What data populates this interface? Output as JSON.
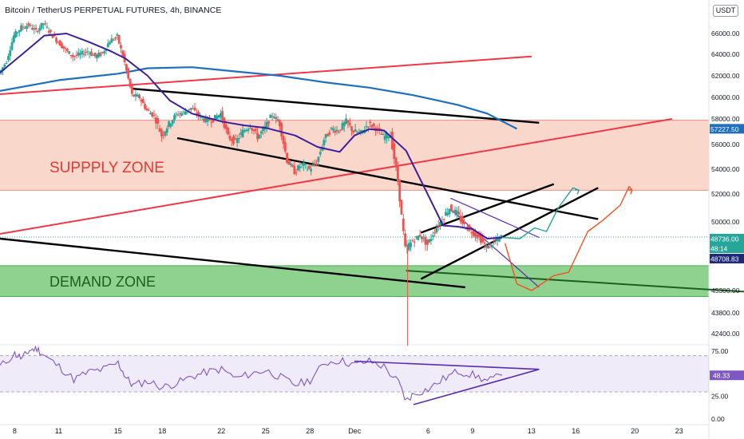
{
  "header": {
    "title": "Bitcoin / TetherUS PERPETUAL FUTURES, 4h, BINANCE",
    "currency": "USDT"
  },
  "zones": {
    "supply": {
      "label": "SUPPPLY ZONE",
      "from": 52300,
      "to": 57900,
      "color": "#f7c9b8"
    },
    "demand": {
      "label": "DEMAND ZONE",
      "from": 44900,
      "to": 46800,
      "color": "#8fd18f"
    }
  },
  "price_badges": [
    {
      "value": "57227.50",
      "bg": "#1e6fbf"
    },
    {
      "value": "48736.00",
      "bg": "#26a69a"
    },
    {
      "value": "48:14",
      "bg": "#26a69a"
    },
    {
      "value": "48708.83",
      "bg": "#1e2a78"
    }
  ],
  "rsi_badge": {
    "value": "48.33",
    "bg": "#7e57c2"
  },
  "chart_data": [
    {
      "type": "candlestick",
      "title": "Bitcoin / TetherUS PERPETUAL FUTURES, 4h, BINANCE",
      "y_ticks": [
        "66000.00",
        "64000.00",
        "62000.00",
        "60000.00",
        "58000.00",
        "56000.00",
        "54000.00",
        "52000.00",
        "50000.00",
        "48000.00",
        "45300.00",
        "43800.00",
        "42400.00"
      ],
      "y_tick_values": [
        66000,
        64000,
        62000,
        60000,
        58000,
        56000,
        54000,
        52000,
        50000,
        48000,
        45300,
        43800,
        42400
      ],
      "x_ticks": [
        "8",
        "11",
        "15",
        "18",
        "22",
        "25",
        "28",
        "Dec",
        "6",
        "9",
        "13",
        "16",
        "20",
        "23"
      ],
      "x_tick_days": [
        8,
        11,
        15,
        18,
        22,
        25,
        28,
        31,
        36,
        39,
        43,
        46,
        50,
        53
      ],
      "x_axis": "day index (Nov 1 = 1, Dec = 31)",
      "ylim": [
        41500,
        68000
      ],
      "price_path": [
        [
          7.0,
          62200
        ],
        [
          7.5,
          63400
        ],
        [
          8.0,
          65800
        ],
        [
          8.5,
          66600
        ],
        [
          9.0,
          66800
        ],
        [
          9.5,
          66200
        ],
        [
          10.0,
          67000
        ],
        [
          10.5,
          66000
        ],
        [
          11.0,
          65200
        ],
        [
          11.5,
          64400
        ],
        [
          12.0,
          63800
        ],
        [
          12.5,
          64000
        ],
        [
          13.0,
          64300
        ],
        [
          13.5,
          63800
        ],
        [
          14.0,
          64100
        ],
        [
          14.5,
          65300
        ],
        [
          15.0,
          65700
        ],
        [
          15.5,
          63200
        ],
        [
          16.0,
          60200
        ],
        [
          16.5,
          60000
        ],
        [
          17.0,
          58800
        ],
        [
          17.5,
          58300
        ],
        [
          18.0,
          56700
        ],
        [
          18.5,
          57600
        ],
        [
          19.0,
          58400
        ],
        [
          19.5,
          58600
        ],
        [
          20.0,
          59000
        ],
        [
          20.5,
          58300
        ],
        [
          21.0,
          57900
        ],
        [
          21.5,
          58000
        ],
        [
          22.0,
          58500
        ],
        [
          22.5,
          56600
        ],
        [
          23.0,
          56200
        ],
        [
          23.5,
          57000
        ],
        [
          24.0,
          57500
        ],
        [
          24.5,
          56600
        ],
        [
          25.0,
          57300
        ],
        [
          25.5,
          58400
        ],
        [
          26.0,
          57600
        ],
        [
          26.5,
          54700
        ],
        [
          27.0,
          53800
        ],
        [
          27.5,
          54400
        ],
        [
          28.0,
          54000
        ],
        [
          28.5,
          54500
        ],
        [
          29.0,
          56400
        ],
        [
          29.5,
          57200
        ],
        [
          30.0,
          57100
        ],
        [
          30.5,
          57800
        ],
        [
          31.0,
          57000
        ],
        [
          31.5,
          56900
        ],
        [
          32.0,
          57600
        ],
        [
          32.5,
          57300
        ],
        [
          33.0,
          56600
        ],
        [
          33.5,
          56800
        ],
        [
          34.0,
          53000
        ],
        [
          34.5,
          47800
        ],
        [
          35.0,
          48400
        ],
        [
          35.5,
          48900
        ],
        [
          36.0,
          48100
        ],
        [
          36.5,
          49300
        ],
        [
          37.0,
          50200
        ],
        [
          37.5,
          51000
        ],
        [
          38.0,
          50600
        ],
        [
          38.5,
          49700
        ],
        [
          39.0,
          49200
        ],
        [
          39.5,
          48700
        ],
        [
          40.0,
          47900
        ],
        [
          40.5,
          48300
        ],
        [
          41.0,
          48736
        ]
      ],
      "ema_blue": [
        [
          7.0,
          60600
        ],
        [
          11.0,
          61600
        ],
        [
          15.0,
          62200
        ],
        [
          17.0,
          62700
        ],
        [
          20.0,
          62800
        ],
        [
          23.0,
          62400
        ],
        [
          26.0,
          62000
        ],
        [
          29.0,
          61400
        ],
        [
          32.0,
          60900
        ],
        [
          35.0,
          60200
        ],
        [
          38.0,
          59300
        ],
        [
          40.0,
          58500
        ],
        [
          42.0,
          57227
        ]
      ],
      "ma_purple": [
        [
          7.0,
          62300
        ],
        [
          8.5,
          64000
        ],
        [
          10.0,
          65800
        ],
        [
          11.5,
          66000
        ],
        [
          13.0,
          65200
        ],
        [
          14.5,
          64300
        ],
        [
          15.5,
          63600
        ],
        [
          17.0,
          62000
        ],
        [
          18.5,
          59700
        ],
        [
          20.0,
          58500
        ],
        [
          22.0,
          57800
        ],
        [
          23.5,
          57500
        ],
        [
          25.0,
          57300
        ],
        [
          27.0,
          56700
        ],
        [
          28.5,
          55800
        ],
        [
          30.0,
          55400
        ],
        [
          31.0,
          56700
        ],
        [
          32.0,
          57200
        ],
        [
          33.0,
          57100
        ],
        [
          34.5,
          55500
        ],
        [
          36.0,
          51900
        ],
        [
          37.0,
          49700
        ],
        [
          38.0,
          49600
        ],
        [
          39.0,
          49400
        ],
        [
          40.0,
          48600
        ],
        [
          41.0,
          48700
        ]
      ],
      "trendlines": [
        {
          "name": "red-rising-upper",
          "color": "#f23645",
          "points": [
            [
              7.0,
              60300
            ],
            [
              43.0,
              63800
            ]
          ]
        },
        {
          "name": "red-rising-lower",
          "color": "#f23645",
          "points": [
            [
              7.0,
              49000
            ],
            [
              52.5,
              58000
            ]
          ]
        },
        {
          "name": "black-channel-upper",
          "color": "#000000",
          "points": [
            [
              16.0,
              60800
            ],
            [
              43.5,
              57700
            ]
          ]
        },
        {
          "name": "black-channel-mid",
          "color": "#000000",
          "points": [
            [
              19.0,
              56500
            ],
            [
              47.5,
              50200
            ]
          ]
        },
        {
          "name": "black-long-lower",
          "color": "#000000",
          "points": [
            [
              7.0,
              48600
            ],
            [
              38.5,
              45500
            ]
          ]
        },
        {
          "name": "demand-trendline",
          "color": "#1b5e20",
          "points": [
            [
              34.5,
              46500
            ],
            [
              61.0,
              45000
            ]
          ]
        },
        {
          "name": "ascending-channel-upper",
          "color": "#000000",
          "points": [
            [
              35.5,
              49100
            ],
            [
              44.5,
              52800
            ]
          ]
        },
        {
          "name": "ascending-channel-lower",
          "color": "#000000",
          "points": [
            [
              35.5,
              46000
            ],
            [
              47.5,
              52500
            ]
          ]
        },
        {
          "name": "descending-wedge-upper",
          "color": "#5b2bb0",
          "points": [
            [
              37.5,
              51700
            ],
            [
              43.5,
              48700
            ]
          ]
        },
        {
          "name": "descending-wedge-lower",
          "color": "#5b2bb0",
          "points": [
            [
              37.5,
              50900
            ],
            [
              43.5,
              45500
            ]
          ]
        }
      ],
      "projections": [
        {
          "name": "projection-bullish",
          "color": "#26a69a",
          "points": [
            [
              41.0,
              48700
            ],
            [
              42.2,
              48600
            ],
            [
              43.2,
              49500
            ],
            [
              44.0,
              49200
            ],
            [
              44.8,
              51000
            ],
            [
              45.8,
              52500
            ],
            [
              46.2,
              52300
            ]
          ]
        },
        {
          "name": "projection-dip",
          "color": "#f4511e",
          "points": [
            [
              41.2,
              48200
            ],
            [
              42.0,
              45700
            ],
            [
              43.0,
              45300
            ],
            [
              44.5,
              46200
            ],
            [
              45.5,
              46400
            ],
            [
              46.8,
              49200
            ],
            [
              47.8,
              50100
            ],
            [
              49.0,
              51200
            ],
            [
              49.6,
              52600
            ],
            [
              49.8,
              52300
            ]
          ]
        }
      ]
    },
    {
      "type": "line",
      "name": "RSI",
      "ylim": [
        0,
        80
      ],
      "y_ticks": [
        "75.00",
        "25.00",
        "0.00"
      ],
      "y_tick_values": [
        75,
        25,
        0
      ],
      "band": [
        30,
        70
      ],
      "values": [
        [
          7.0,
          58
        ],
        [
          8.0,
          72
        ],
        [
          8.5,
          67
        ],
        [
          9.0,
          76
        ],
        [
          9.5,
          78
        ],
        [
          10.0,
          70
        ],
        [
          11.0,
          58
        ],
        [
          12.0,
          44
        ],
        [
          13.0,
          52
        ],
        [
          14.0,
          55
        ],
        [
          15.0,
          62
        ],
        [
          15.5,
          47
        ],
        [
          16.0,
          37
        ],
        [
          17.0,
          42
        ],
        [
          18.0,
          35
        ],
        [
          19.0,
          40
        ],
        [
          20.0,
          47
        ],
        [
          21.0,
          52
        ],
        [
          22.0,
          55
        ],
        [
          23.0,
          45
        ],
        [
          24.0,
          50
        ],
        [
          25.0,
          54
        ],
        [
          26.0,
          46
        ],
        [
          27.0,
          38
        ],
        [
          28.0,
          43
        ],
        [
          29.0,
          62
        ],
        [
          30.0,
          65
        ],
        [
          31.0,
          60
        ],
        [
          32.0,
          64
        ],
        [
          33.0,
          58
        ],
        [
          34.0,
          40
        ],
        [
          34.5,
          20
        ],
        [
          35.0,
          28
        ],
        [
          36.0,
          33
        ],
        [
          37.0,
          44
        ],
        [
          38.0,
          53
        ],
        [
          39.0,
          49
        ],
        [
          40.0,
          42
        ],
        [
          41.0,
          48.33
        ]
      ],
      "trendlines": [
        {
          "color": "#5b2bb0",
          "points": [
            [
              31.0,
              64
            ],
            [
              43.5,
              55
            ]
          ]
        },
        {
          "color": "#5b2bb0",
          "points": [
            [
              35.0,
              16
            ],
            [
              43.5,
              55
            ]
          ]
        }
      ]
    }
  ]
}
